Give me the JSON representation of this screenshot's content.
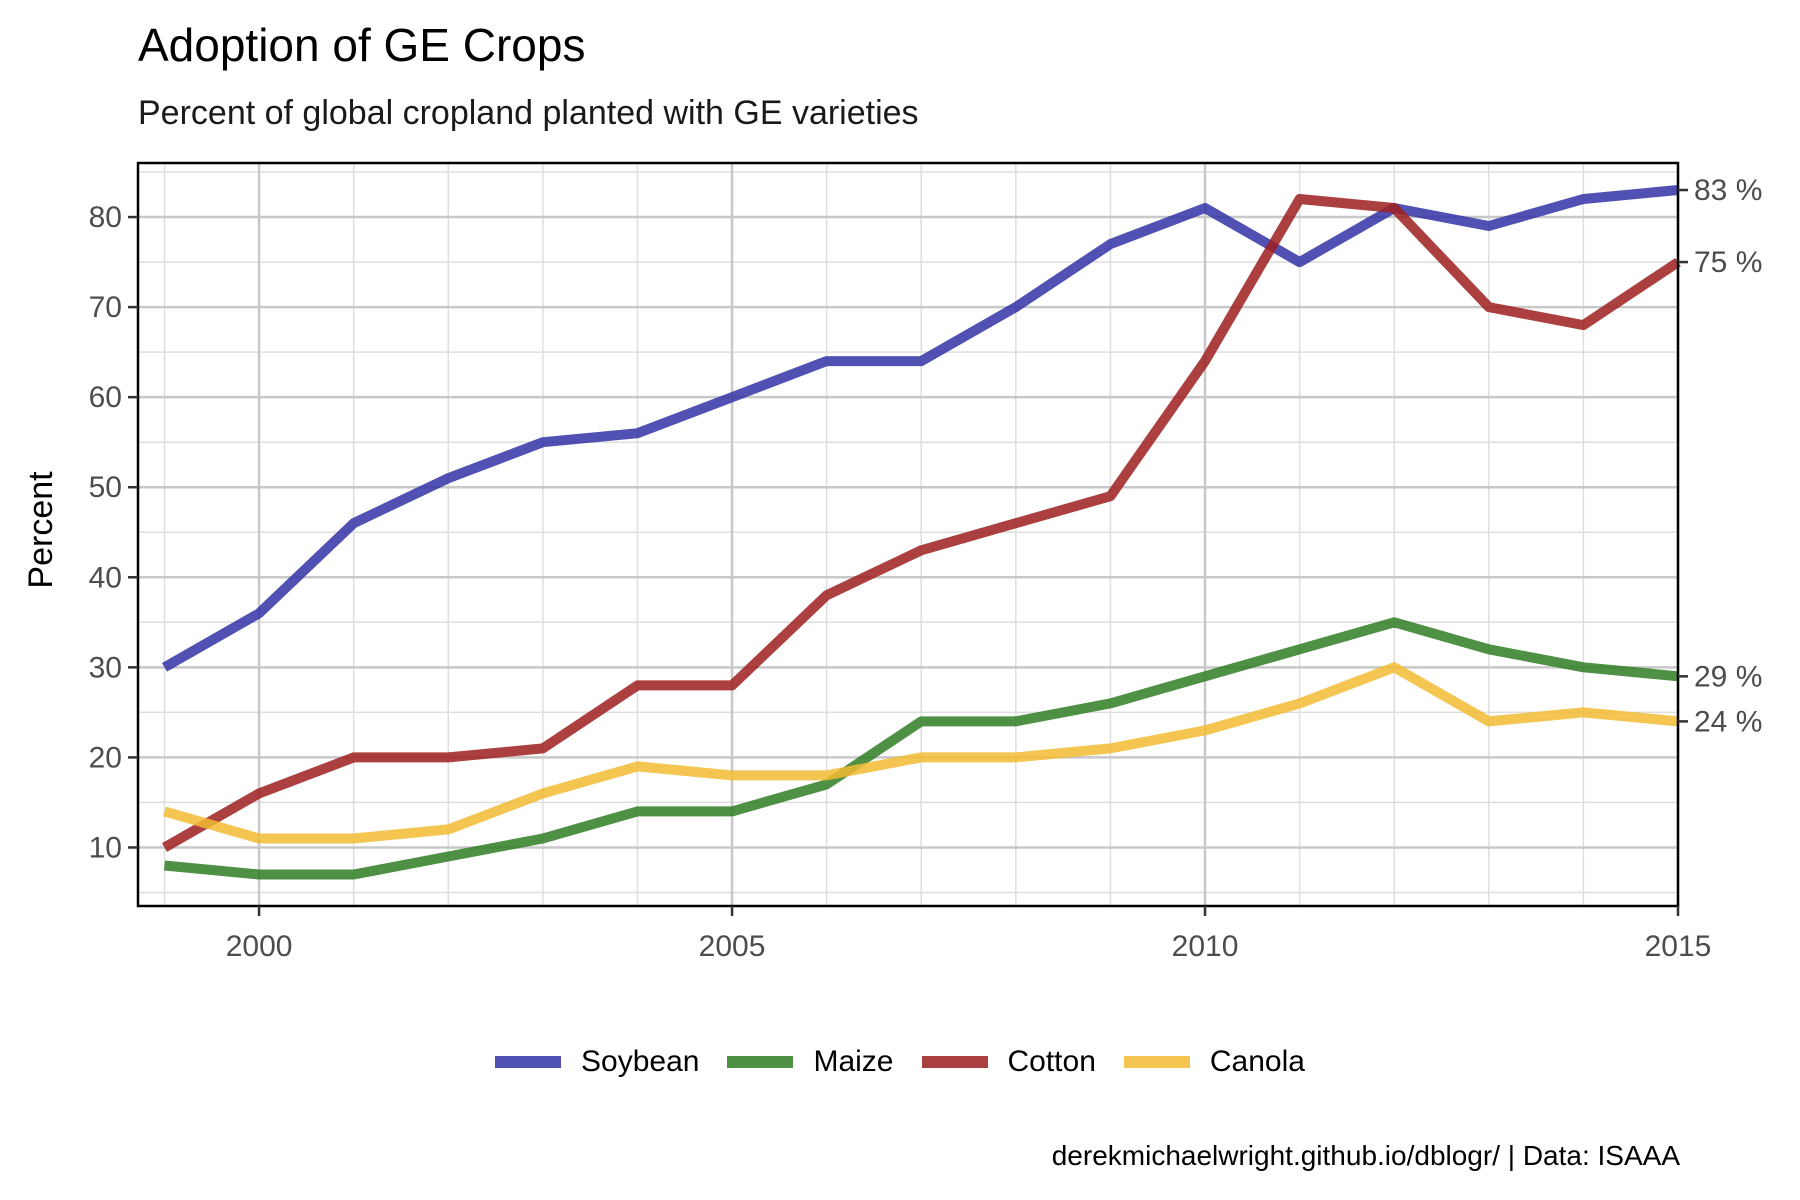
{
  "title": "Adoption of GE Crops",
  "subtitle": "Percent of global cropland planted with GE varieties",
  "caption": "derekmichaelwright.github.io/dblogr/ | Data: ISAAA",
  "chart_data": {
    "type": "line",
    "title": "Adoption of GE Crops",
    "subtitle": "Percent of global cropland planted with GE varieties",
    "xlabel": "",
    "ylabel": "Percent",
    "xlim": [
      1998.72,
      2015
    ],
    "ylim": [
      3.5,
      86
    ],
    "x_ticks": [
      2000,
      2005,
      2010,
      2015
    ],
    "y_ticks": [
      10,
      20,
      30,
      40,
      50,
      60,
      70,
      80
    ],
    "x": [
      1999,
      2000,
      2001,
      2002,
      2003,
      2004,
      2005,
      2006,
      2007,
      2008,
      2009,
      2010,
      2011,
      2012,
      2013,
      2014,
      2015
    ],
    "series": [
      {
        "name": "Soybean",
        "color": "#3333a6",
        "values": [
          30,
          36,
          46,
          51,
          55,
          56,
          60,
          64,
          64,
          70,
          77,
          81,
          75,
          81,
          79,
          82,
          83
        ]
      },
      {
        "name": "Maize",
        "color": "#2f7d23",
        "values": [
          8,
          7,
          7,
          9,
          11,
          14,
          14,
          17,
          24,
          24,
          26,
          29,
          32,
          35,
          32,
          30,
          29
        ]
      },
      {
        "name": "Cotton",
        "color": "#9e1f1f",
        "values": [
          10,
          16,
          20,
          20,
          21,
          28,
          28,
          38,
          43,
          46,
          49,
          64,
          82,
          81,
          70,
          68,
          75
        ]
      },
      {
        "name": "Canola",
        "color": "#f2bb32",
        "values": [
          14,
          11,
          11,
          12,
          16,
          19,
          18,
          18,
          20,
          20,
          21,
          23,
          26,
          30,
          24,
          25,
          24
        ]
      }
    ],
    "end_labels": [
      {
        "value": 83,
        "text": "83 %"
      },
      {
        "value": 75,
        "text": "75 %"
      },
      {
        "value": 29,
        "text": "29 %"
      },
      {
        "value": 24,
        "text": "24 %"
      }
    ],
    "grid": true,
    "legend_position": "bottom"
  }
}
